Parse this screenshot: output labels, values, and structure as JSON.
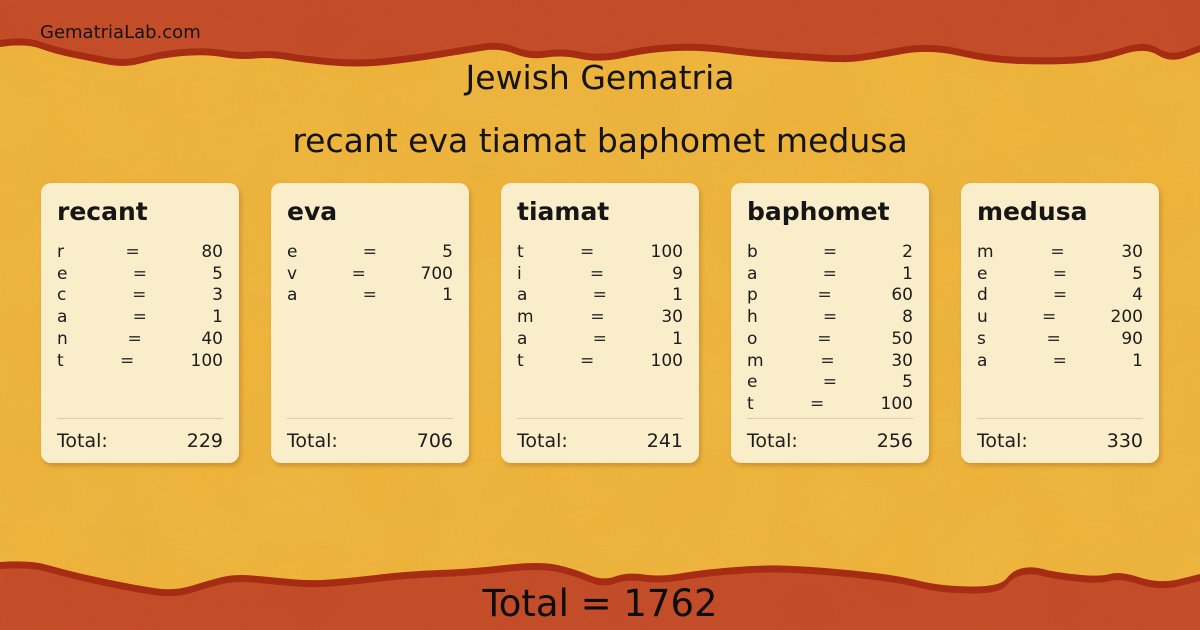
{
  "brand": "GematriaLab.com",
  "header": {
    "title": "Jewish Gematria",
    "phrase": "recant eva tiamat baphomet medusa"
  },
  "equals_sign": "=",
  "total_label": "Total:",
  "cards": [
    {
      "word": "recant",
      "rows": [
        {
          "letter": "r",
          "value": "80"
        },
        {
          "letter": "e",
          "value": "5"
        },
        {
          "letter": "c",
          "value": "3"
        },
        {
          "letter": "a",
          "value": "1"
        },
        {
          "letter": "n",
          "value": "40"
        },
        {
          "letter": "t",
          "value": "100"
        }
      ],
      "total": "229"
    },
    {
      "word": "eva",
      "rows": [
        {
          "letter": "e",
          "value": "5"
        },
        {
          "letter": "v",
          "value": "700"
        },
        {
          "letter": "a",
          "value": "1"
        }
      ],
      "total": "706"
    },
    {
      "word": "tiamat",
      "rows": [
        {
          "letter": "t",
          "value": "100"
        },
        {
          "letter": "i",
          "value": "9"
        },
        {
          "letter": "a",
          "value": "1"
        },
        {
          "letter": "m",
          "value": "30"
        },
        {
          "letter": "a",
          "value": "1"
        },
        {
          "letter": "t",
          "value": "100"
        }
      ],
      "total": "241"
    },
    {
      "word": "baphomet",
      "rows": [
        {
          "letter": "b",
          "value": "2"
        },
        {
          "letter": "a",
          "value": "1"
        },
        {
          "letter": "p",
          "value": "60"
        },
        {
          "letter": "h",
          "value": "8"
        },
        {
          "letter": "o",
          "value": "50"
        },
        {
          "letter": "m",
          "value": "30"
        },
        {
          "letter": "e",
          "value": "5"
        },
        {
          "letter": "t",
          "value": "100"
        }
      ],
      "total": "256"
    },
    {
      "word": "medusa",
      "rows": [
        {
          "letter": "m",
          "value": "30"
        },
        {
          "letter": "e",
          "value": "5"
        },
        {
          "letter": "d",
          "value": "4"
        },
        {
          "letter": "u",
          "value": "200"
        },
        {
          "letter": "s",
          "value": "90"
        },
        {
          "letter": "a",
          "value": "1"
        }
      ],
      "total": "330"
    }
  ],
  "footer": {
    "grand_total": "Total = 1762"
  },
  "colors": {
    "background": "#f0b335",
    "band": "#c24b26",
    "band_edge": "#a52b12",
    "card": "#f9edca",
    "text": "#1d1d1d",
    "divider": "#d5cdba"
  }
}
